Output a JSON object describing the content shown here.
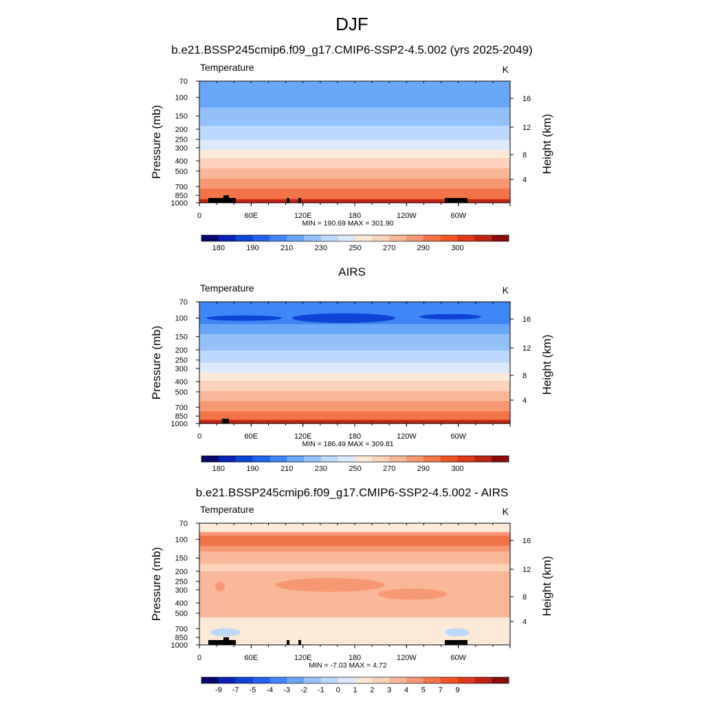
{
  "figure": {
    "title": "DJF"
  },
  "colors": {
    "model_obs": [
      "#08086b",
      "#0a23b4",
      "#0e44d6",
      "#1f63ef",
      "#3f86f6",
      "#6aa6f8",
      "#95c1f9",
      "#bcd8fb",
      "#dde9fc",
      "#fde9d7",
      "#fbd3bc",
      "#f9b799",
      "#f69874",
      "#f27449",
      "#ef5423",
      "#e0381a",
      "#bb2512",
      "#8a0d0a"
    ],
    "diff": [
      "#08086b",
      "#0a23b4",
      "#0e44d6",
      "#1f63ef",
      "#3f86f6",
      "#6aa6f8",
      "#95c1f9",
      "#bcd8fb",
      "#dde9fc",
      "#fde9d7",
      "#fbd3bc",
      "#f9b799",
      "#f69874",
      "#f27449",
      "#ef5423",
      "#e0381a",
      "#bb2512",
      "#8a0d0a"
    ],
    "terrain": "#000000"
  },
  "chart_data": [
    {
      "type": "heatmap",
      "title": "b.e21.BSSP245cmip6.f09_g17.CMIP6-SSP2-4.5.002 (yrs 2025-2049)",
      "variable": "Temperature",
      "units": "K",
      "xlabel": "",
      "ylabel": "Pressure (mb)",
      "ylabel_right": "Height (km)",
      "x_ticks": [
        "0",
        "60E",
        "120E",
        "180",
        "120W",
        "60W"
      ],
      "y_ticks": [
        "70",
        "100",
        "150",
        "200",
        "250",
        "300",
        "400",
        "500",
        "700",
        "850",
        "1000"
      ],
      "y_right_ticks": [
        "16",
        "12",
        "8",
        "4"
      ],
      "ylim": [
        1000,
        70
      ],
      "y_scale": "log",
      "min": 190.69,
      "max": 301.9,
      "stats_label": "MIN = 190.69  MAX = 301.90",
      "colorbar_ticks": [
        "180",
        "190",
        "210",
        "230",
        "250",
        "270",
        "290",
        "300"
      ],
      "levels": [
        {
          "p": 70,
          "temp": 200
        },
        {
          "p": 100,
          "temp": 205
        },
        {
          "p": 150,
          "temp": 215
        },
        {
          "p": 200,
          "temp": 222
        },
        {
          "p": 250,
          "temp": 230
        },
        {
          "p": 300,
          "temp": 238
        },
        {
          "p": 400,
          "temp": 252
        },
        {
          "p": 500,
          "temp": 262
        },
        {
          "p": 700,
          "temp": 277
        },
        {
          "p": 850,
          "temp": 287
        },
        {
          "p": 1000,
          "temp": 296
        }
      ]
    },
    {
      "type": "heatmap",
      "title": "AIRS",
      "variable": "Temperature",
      "units": "K",
      "xlabel": "",
      "ylabel": "Pressure (mb)",
      "ylabel_right": "Height (km)",
      "x_ticks": [
        "0",
        "60E",
        "120E",
        "180",
        "120W",
        "60W"
      ],
      "y_ticks": [
        "70",
        "100",
        "150",
        "200",
        "250",
        "300",
        "400",
        "500",
        "700",
        "850",
        "1000"
      ],
      "y_right_ticks": [
        "16",
        "12",
        "8",
        "4"
      ],
      "ylim": [
        1000,
        70
      ],
      "y_scale": "log",
      "min": 186.49,
      "max": 309.81,
      "stats_label": "MIN = 186.49  MAX = 309.81",
      "colorbar_ticks": [
        "180",
        "190",
        "210",
        "230",
        "250",
        "270",
        "290",
        "300"
      ],
      "levels": [
        {
          "p": 70,
          "temp": 198
        },
        {
          "p": 100,
          "temp": 195
        },
        {
          "p": 150,
          "temp": 212
        },
        {
          "p": 200,
          "temp": 220
        },
        {
          "p": 250,
          "temp": 228
        },
        {
          "p": 300,
          "temp": 236
        },
        {
          "p": 400,
          "temp": 250
        },
        {
          "p": 500,
          "temp": 260
        },
        {
          "p": 700,
          "temp": 276
        },
        {
          "p": 850,
          "temp": 286
        },
        {
          "p": 1000,
          "temp": 295
        }
      ]
    },
    {
      "type": "heatmap",
      "title": "b.e21.BSSP245cmip6.f09_g17.CMIP6-SSP2-4.5.002 - AIRS",
      "variable": "Temperature",
      "units": "K",
      "xlabel": "",
      "ylabel": "Pressure (mb)",
      "ylabel_right": "Height (km)",
      "x_ticks": [
        "0",
        "60E",
        "120E",
        "180",
        "120W",
        "60W"
      ],
      "y_ticks": [
        "70",
        "100",
        "150",
        "200",
        "250",
        "300",
        "400",
        "500",
        "700",
        "850",
        "1000"
      ],
      "y_right_ticks": [
        "16",
        "12",
        "8",
        "4"
      ],
      "ylim": [
        1000,
        70
      ],
      "y_scale": "log",
      "min": -7.03,
      "max": 4.72,
      "stats_label": "MIN =  -7.03  MAX =   4.72",
      "colorbar_ticks": [
        "-9",
        "-7",
        "-5",
        "-4",
        "-3",
        "-2",
        "-1",
        "0",
        "1",
        "2",
        "3",
        "4",
        "5",
        "7",
        "9"
      ]
    }
  ]
}
